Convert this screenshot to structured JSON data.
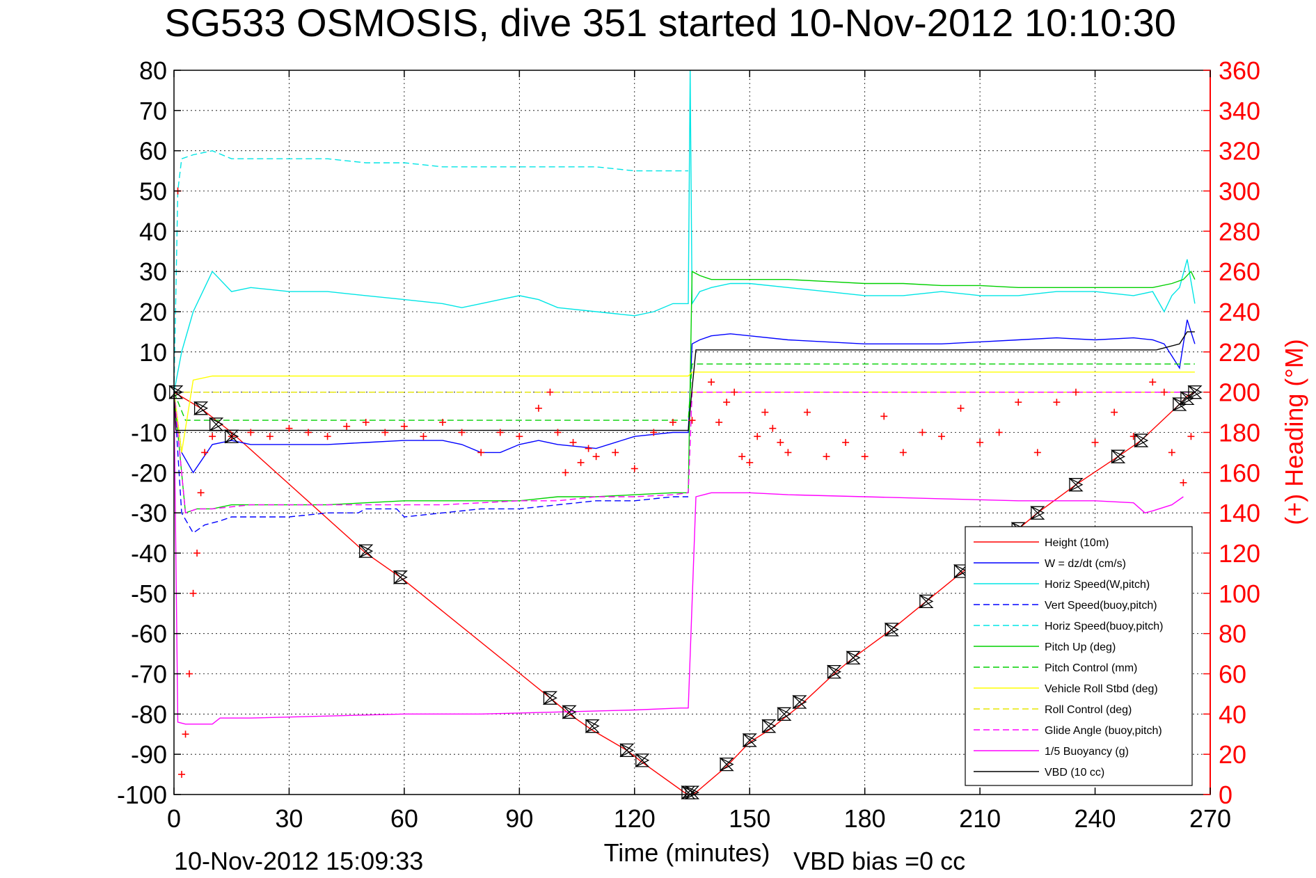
{
  "chart_data": {
    "type": "line",
    "title": "SG533 OSMOSIS, dive 351 started 10-Nov-2012 10:10:30",
    "xlabel": "Time (minutes)",
    "ylabel": "",
    "y2label": "(+) Heading (°M)",
    "xlim": [
      0,
      270
    ],
    "ylim": [
      -100,
      80
    ],
    "y2lim": [
      0,
      360
    ],
    "xticks": [
      "0",
      "30",
      "60",
      "90",
      "120",
      "150",
      "180",
      "210",
      "240",
      "270"
    ],
    "yticks": [
      "80",
      "70",
      "60",
      "50",
      "40",
      "30",
      "20",
      "10",
      "0",
      "-10",
      "-20",
      "-30",
      "-40",
      "-50",
      "-60",
      "-70",
      "-80",
      "-90",
      "-100"
    ],
    "y2ticks": [
      "360",
      "340",
      "320",
      "300",
      "280",
      "260",
      "240",
      "220",
      "200",
      "180",
      "160",
      "140",
      "120",
      "100",
      "80",
      "60",
      "40",
      "20",
      "0"
    ],
    "grid": true,
    "legend_position": "bottom-right",
    "footer_left": "10-Nov-2012 15:09:33",
    "footer_right": "VBD bias =0 cc",
    "series": [
      {
        "name": "Height (10m)",
        "color": "#ff0000",
        "dash": "solid",
        "x": [
          0,
          7,
          15,
          50,
          59,
          98,
          103,
          109,
          118,
          122,
          133,
          134,
          135,
          136,
          144,
          150,
          155,
          159,
          163,
          172,
          177,
          187,
          196,
          205,
          220,
          225,
          235,
          246,
          252,
          262,
          264,
          266
        ],
        "y": [
          0,
          -4,
          -10,
          -40,
          -46,
          -76,
          -80,
          -84,
          -89,
          -92,
          -99.5,
          -100,
          -100,
          -99.5,
          -93,
          -87,
          -84,
          -81,
          -78,
          -70,
          -66,
          -59,
          -52,
          -45,
          -34,
          -30,
          -23,
          -16,
          -12,
          -3,
          -1,
          0
        ]
      },
      {
        "name": "W = dz/dt (cm/s)",
        "color": "#0000ff",
        "dash": "solid",
        "x": [
          0,
          2,
          5,
          10,
          15,
          20,
          30,
          40,
          50,
          60,
          70,
          75,
          80,
          85,
          90,
          95,
          100,
          110,
          120,
          130,
          134,
          135,
          137,
          140,
          145,
          150,
          160,
          170,
          180,
          190,
          200,
          210,
          220,
          230,
          240,
          250,
          255,
          258,
          260,
          262,
          264,
          266
        ],
        "y": [
          0,
          -15,
          -20,
          -13,
          -12,
          -13,
          -13,
          -13,
          -12.5,
          -12,
          -12,
          -13,
          -15,
          -15,
          -13,
          -12,
          -13,
          -14,
          -11,
          -10,
          -10,
          12,
          13,
          14,
          14.5,
          14,
          13,
          12.5,
          12,
          12,
          12,
          12.5,
          13,
          13.5,
          13,
          13.5,
          13,
          12,
          9,
          6,
          18,
          12
        ]
      },
      {
        "name": "Horiz Speed(W,pitch)",
        "color": "#00e5e5",
        "dash": "solid",
        "x": [
          0,
          2,
          5,
          8,
          10,
          15,
          20,
          30,
          40,
          50,
          60,
          70,
          75,
          80,
          85,
          90,
          95,
          100,
          110,
          120,
          125,
          130,
          134,
          134.5,
          135,
          137,
          140,
          145,
          150,
          160,
          170,
          180,
          190,
          200,
          210,
          220,
          230,
          240,
          250,
          255,
          258,
          260,
          262,
          264,
          266
        ],
        "y": [
          0,
          10,
          20,
          26,
          30,
          25,
          26,
          25,
          25,
          24,
          23,
          22,
          21,
          22,
          23,
          24,
          23,
          21,
          20,
          19,
          20,
          22,
          22,
          80,
          22,
          25,
          26,
          27,
          27,
          26,
          25,
          24,
          24,
          25,
          24,
          24,
          25,
          25,
          24,
          25,
          20,
          24,
          26,
          33,
          22
        ]
      },
      {
        "name": "Vert Speed(buoy,pitch)",
        "color": "#0000ff",
        "dash": "dashed",
        "x": [
          0,
          2,
          5,
          8,
          12,
          15,
          20,
          30,
          40,
          48,
          50,
          58,
          60,
          70,
          80,
          90,
          100,
          110,
          120,
          130,
          134
        ],
        "y": [
          0,
          -30,
          -35,
          -33,
          -32,
          -31,
          -31,
          -31,
          -30,
          -30,
          -29,
          -29,
          -31,
          -30,
          -29,
          -29,
          -28,
          -27,
          -27,
          -26,
          -26
        ]
      },
      {
        "name": "Horiz Speed(buoy,pitch)",
        "color": "#00e5e5",
        "dash": "dashed",
        "x": [
          0,
          1,
          2,
          5,
          10,
          15,
          20,
          30,
          40,
          50,
          60,
          70,
          80,
          90,
          100,
          110,
          120,
          130,
          134
        ],
        "y": [
          0,
          50,
          58,
          59,
          60,
          58,
          58,
          58,
          58,
          57,
          57,
          56,
          56,
          56,
          56,
          56,
          55,
          55,
          55
        ]
      },
      {
        "name": "Pitch Up (deg)",
        "color": "#00d000",
        "dash": "solid",
        "x": [
          0,
          3,
          6,
          10,
          15,
          20,
          30,
          40,
          50,
          60,
          70,
          80,
          90,
          100,
          110,
          120,
          130,
          134,
          135,
          137,
          140,
          150,
          160,
          170,
          180,
          190,
          200,
          210,
          220,
          230,
          240,
          250,
          255,
          260,
          263,
          265,
          266
        ],
        "y": [
          0,
          -30,
          -29,
          -29,
          -28,
          -28,
          -28,
          -28,
          -27.5,
          -27,
          -27,
          -27,
          -27,
          -26,
          -26,
          -25.5,
          -25,
          -25,
          30,
          29,
          28,
          28,
          28,
          27.5,
          27,
          27,
          26.5,
          26.5,
          26,
          26,
          26,
          26,
          26,
          27,
          28,
          30,
          28
        ]
      },
      {
        "name": "Pitch Control (mm)",
        "color": "#00d000",
        "dash": "dashed",
        "x": [
          0,
          3,
          134,
          135,
          266
        ],
        "y": [
          0,
          -7,
          -7,
          7,
          7
        ]
      },
      {
        "name": "Vehicle Roll Stbd (deg)",
        "color": "#ffff00",
        "dash": "solid",
        "x": [
          0,
          2,
          5,
          10,
          15,
          20,
          30,
          40,
          50,
          60,
          70,
          80,
          90,
          100,
          110,
          120,
          130,
          134,
          135,
          140,
          150,
          160,
          170,
          180,
          190,
          200,
          210,
          220,
          230,
          240,
          250,
          260,
          266
        ],
        "y": [
          0,
          -15,
          3,
          4,
          4,
          4,
          4,
          4,
          4,
          4,
          4,
          4,
          4,
          4,
          4,
          4,
          4,
          4,
          5,
          5,
          5,
          5,
          5,
          5,
          5,
          5,
          5,
          5,
          5,
          5,
          5,
          5,
          5
        ]
      },
      {
        "name": "Roll Control (deg)",
        "color": "#e5e500",
        "dash": "dashed",
        "x": [
          0,
          266
        ],
        "y": [
          0,
          0
        ]
      },
      {
        "name": "Glide Angle (buoy,pitch)",
        "color": "#ff00ff",
        "dash": "dashed",
        "x": [
          0,
          3,
          6,
          10,
          20,
          30,
          40,
          50,
          60,
          70,
          80,
          90,
          100,
          110,
          120,
          130,
          134,
          135,
          266
        ],
        "y": [
          0,
          -30,
          -29,
          -29,
          -28,
          -28,
          -28,
          -28,
          -28,
          -28,
          -27.5,
          -27,
          -27,
          -26,
          -26,
          -25.5,
          -25,
          0,
          0
        ]
      },
      {
        "name": "1/5 Buoyancy (g)",
        "color": "#ff00ff",
        "dash": "solid",
        "x": [
          0,
          1,
          3,
          10,
          12,
          20,
          40,
          60,
          80,
          100,
          120,
          132,
          134,
          136,
          140,
          150,
          160,
          180,
          200,
          220,
          240,
          250,
          253,
          255,
          260,
          263
        ],
        "y": [
          0,
          -82,
          -82.5,
          -82.5,
          -81,
          -81,
          -80.5,
          -80,
          -80,
          -79.5,
          -79,
          -78.5,
          -78.5,
          -26,
          -25,
          -25,
          -25.5,
          -26,
          -26.5,
          -27,
          -27,
          -27.5,
          -30,
          -29.5,
          -28,
          -26
        ]
      },
      {
        "name": "VBD (10 cc)",
        "color": "#000000",
        "dash": "solid",
        "x": [
          0,
          0.5,
          2,
          134,
          135,
          136,
          253,
          256,
          262,
          264,
          266
        ],
        "y": [
          0,
          -9.5,
          -9.5,
          -9.5,
          1,
          10.5,
          10.5,
          10.5,
          12,
          15,
          15
        ]
      }
    ],
    "heading_points": {
      "name": "(+) Heading (°M)",
      "color": "#ff0000",
      "axis": "right",
      "x": [
        1,
        2,
        3,
        4,
        5,
        6,
        7,
        8,
        10,
        15,
        20,
        25,
        30,
        35,
        40,
        45,
        50,
        55,
        60,
        65,
        70,
        75,
        80,
        85,
        90,
        95,
        98,
        100,
        102,
        104,
        106,
        108,
        110,
        115,
        120,
        125,
        130,
        135,
        140,
        142,
        144,
        146,
        148,
        150,
        152,
        154,
        156,
        158,
        160,
        165,
        170,
        175,
        180,
        185,
        190,
        195,
        200,
        205,
        210,
        215,
        220,
        225,
        230,
        235,
        240,
        245,
        250,
        255,
        258,
        260,
        263,
        265
      ],
      "y": [
        300,
        10,
        30,
        60,
        100,
        120,
        150,
        170,
        178,
        178,
        180,
        178,
        182,
        180,
        178,
        183,
        185,
        180,
        183,
        178,
        185,
        180,
        170,
        180,
        178,
        192,
        200,
        180,
        160,
        175,
        165,
        172,
        168,
        170,
        162,
        180,
        185,
        186,
        205,
        185,
        195,
        200,
        168,
        165,
        178,
        190,
        182,
        175,
        170,
        190,
        168,
        175,
        168,
        188,
        170,
        180,
        178,
        192,
        175,
        180,
        195,
        170,
        195,
        200,
        175,
        190,
        178,
        205,
        200,
        170,
        155,
        178
      ]
    },
    "markers": {
      "symbol": "hourglass",
      "color": "#000000",
      "x": [
        0.5,
        7,
        11,
        15,
        50,
        59,
        98,
        103,
        109,
        118,
        122,
        134,
        135,
        144,
        150,
        155,
        159,
        163,
        172,
        177,
        187,
        196,
        205,
        220,
        225,
        235,
        246,
        252,
        262,
        264,
        266
      ],
      "y": [
        0,
        -4,
        -8,
        -11,
        -39.5,
        -46,
        -76,
        -79.5,
        -83,
        -89,
        -91.5,
        -99.5,
        -99.5,
        -92.5,
        -86.5,
        -83,
        -80,
        -77,
        -69.5,
        -66,
        -59,
        -52,
        -44.5,
        -34,
        -30,
        -23,
        -16,
        -12,
        -3,
        -1.5,
        0
      ]
    }
  }
}
